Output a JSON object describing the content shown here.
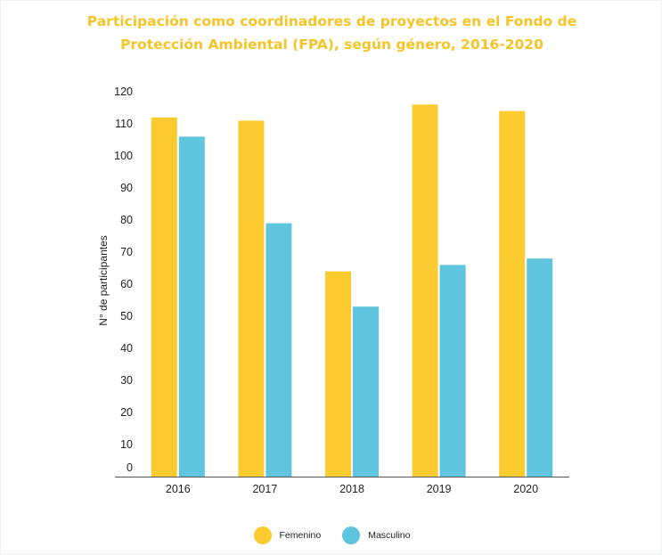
{
  "chart_data": {
    "type": "bar",
    "title_lines": [
      "Participación  como coordinadores de proyectos en el Fondo de",
      "Protección Ambiental (FPA), según género, 2016-2020"
    ],
    "xlabel": "",
    "ylabel": "N° de participantes",
    "categories": [
      "2016",
      "2017",
      "2018",
      "2019",
      "2020"
    ],
    "series": [
      {
        "name": "Femenino",
        "color": "#fccb2f",
        "values": [
          112,
          111,
          64,
          116,
          114
        ]
      },
      {
        "name": "Masculino",
        "color": "#5fc4dd",
        "values": [
          106,
          79,
          53,
          66,
          68
        ]
      }
    ],
    "ylim": [
      0,
      120
    ],
    "yticks": [
      0,
      10,
      20,
      30,
      40,
      50,
      60,
      70,
      80,
      90,
      100,
      110,
      120
    ],
    "grid": false,
    "legend_position": "bottom-center"
  },
  "colors": {
    "title": "#f5c427",
    "axis_line": "#555555"
  }
}
